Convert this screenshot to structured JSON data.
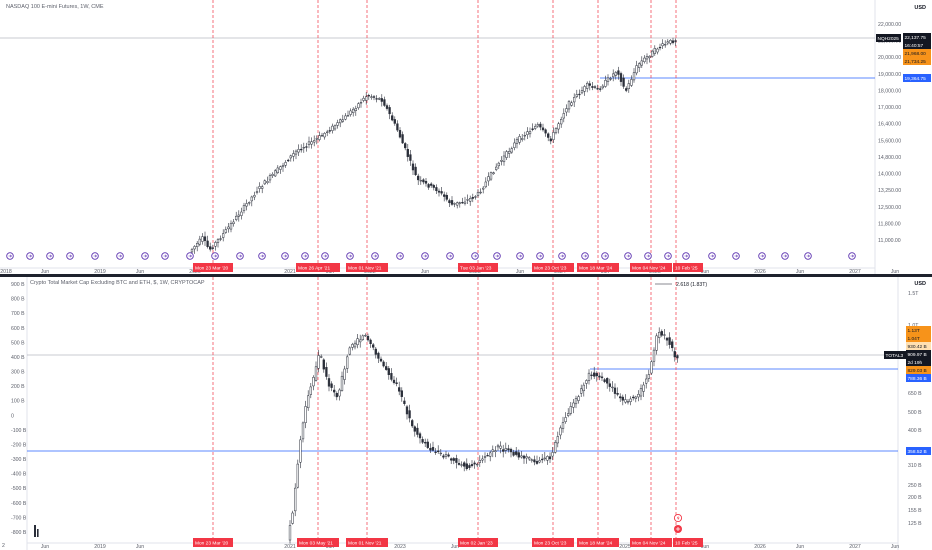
{
  "top_pane": {
    "title": "NASDAQ 100 E-mini Futures, 1W, CME",
    "currency": "USD",
    "ticker_tag": "NQH2025",
    "price_tags": [
      {
        "text": "22,137.75",
        "kind": "current"
      },
      {
        "text": "16:40:57",
        "kind": "timer"
      },
      {
        "text": "21,968.00",
        "kind": "orange"
      },
      {
        "text": "21,734.25",
        "kind": "orange"
      },
      {
        "text": "19,364.75",
        "kind": "blue"
      }
    ],
    "y_ticks": [
      "22,000.00",
      "21,000.00",
      "20,000.00",
      "19,000.00",
      "18,000.00",
      "17,000.00",
      "16,400.00",
      "15,600.00",
      "14,800.00",
      "14,000.00",
      "13,250.00",
      "12,500.00",
      "11,800.00",
      "11,000.00"
    ],
    "x_ticks": [
      "2018",
      "Jun",
      "2019",
      "Jun",
      "2020",
      "2021",
      "Jun",
      "2022",
      "Jun",
      "2023",
      "Jun",
      "2024",
      "Jun",
      "2025",
      "Jun",
      "2026",
      "Jun",
      "2027",
      "Jun"
    ],
    "event_labels": [
      "Mon 23 Mar '20",
      "Mon 26 Apr '21",
      "Mon 01 Nov '21",
      "Tue 03 Jan '23",
      "Mon 23 Oct '23",
      "Mon 18 Mar '24",
      "Mon 04 Nov '24",
      "10 Feb '25"
    ]
  },
  "bottom_pane": {
    "title": "Crypto Total Market Cap Excluding BTC and ETH, $, 1W, CRYPTOCAP",
    "currency": "USD",
    "ticker_tag": "TOTAL3",
    "fib_label": "2.618 (1.83T)",
    "price_tags": [
      {
        "text": "1.13T",
        "kind": "orange"
      },
      {
        "text": "1.04T",
        "kind": "orange"
      },
      {
        "text": "930.42 B",
        "kind": "orange-light"
      },
      {
        "text": "909.97 B",
        "kind": "current"
      },
      {
        "text": "2d 19h",
        "kind": "timer"
      },
      {
        "text": "829.03 B",
        "kind": "orange"
      },
      {
        "text": "788.36 B",
        "kind": "blue"
      },
      {
        "text": "358.52 B",
        "kind": "blue"
      }
    ],
    "left_ticks": [
      "900 B",
      "800 B",
      "700 B",
      "600 B",
      "500 B",
      "400 B",
      "300 B",
      "200 B",
      "100 B",
      "0",
      "-100 B",
      "-200 B",
      "-300 B",
      "-400 B",
      "-500 B",
      "-600 B",
      "-700 B",
      "-800 B"
    ],
    "right_ticks": [
      "1.5T",
      "1.0T",
      "650 B",
      "500 B",
      "400 B",
      "310 B",
      "250 B",
      "200 B",
      "155 B",
      "125 B"
    ],
    "x_ticks": [
      "Jun",
      "2019",
      "Jun",
      "2021",
      "Jun",
      "2023",
      "Jun",
      "2025",
      "Jun",
      "2026",
      "Jun",
      "2027",
      "Jun"
    ],
    "event_labels": [
      "Mon 23 Mar '20",
      "Mon 03 May '21",
      "Mon 01 Nov '21",
      "Mon 02 Jan '23",
      "Mon 23 Oct '23",
      "Mon 18 Mar '24",
      "Mon 04 Nov '24",
      "10 Feb '25"
    ],
    "left_edge_label": "2"
  },
  "colors": {
    "event_line": "#f23645",
    "event_tag": "#f23645",
    "blue_line": "#2962ff",
    "orange_tag": "#f7931a",
    "candle": "#2a2e39",
    "grid_text": "#5d606b",
    "timeline_icon": "#5e35b1"
  }
}
